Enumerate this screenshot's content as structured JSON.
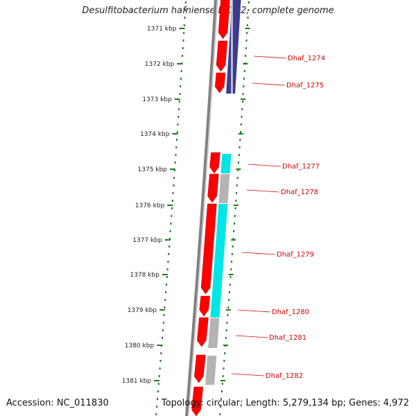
{
  "title": "Desulfitobacterium hafniense DCB-2, complete genome",
  "footer": {
    "accession": "Accession: NC_011830",
    "topology": "Topology: circular; Length: 5,279,134 bp; Genes: 4,972"
  },
  "ticks": [
    "1371 kbp",
    "1372 kbp",
    "1373 kbp",
    "1374 kbp",
    "1375 kbp",
    "1376 kbp",
    "1377 kbp",
    "1378 kbp",
    "1379 kbp",
    "1380 kbp",
    "1381 kbp"
  ],
  "gene_labels": [
    "Dhaf_1274",
    "Dhaf_1275",
    "Dhaf_1277",
    "Dhaf_1278",
    "Dhaf_1279",
    "Dhaf_1280",
    "Dhaf_1281",
    "Dhaf_1282"
  ],
  "colors": {
    "forward_cds": "#ff0000",
    "backbone": "#808080",
    "tick": "#1a7a1a",
    "label": "#d00000",
    "dark_blue_feature": "#3c3c8c",
    "cyan_feature": "#00e5e5",
    "gray_feature": "#b4b4b4"
  }
}
